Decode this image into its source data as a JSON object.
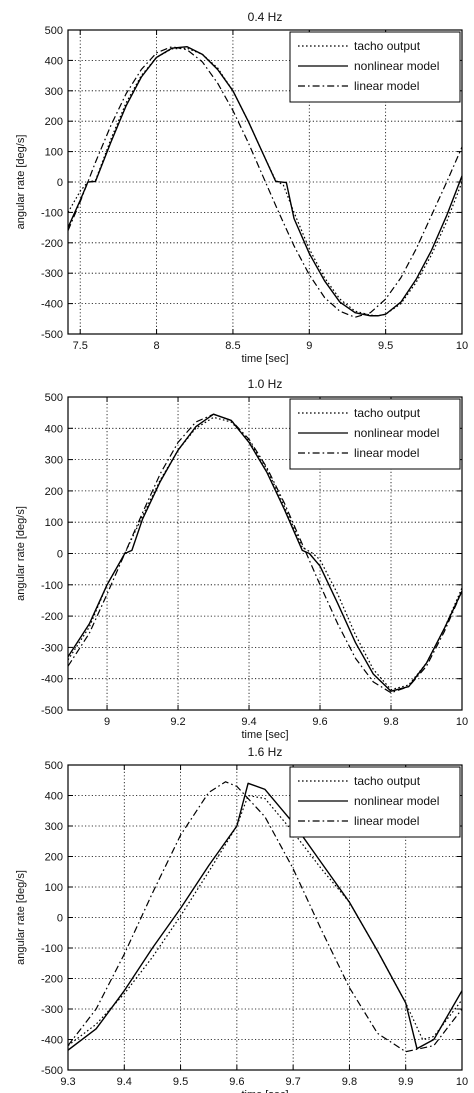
{
  "chart_data": [
    {
      "type": "line",
      "title": "0.4 Hz",
      "xlabel": "time [sec]",
      "ylabel": "angular rate [deg/s]",
      "xlim": [
        7.42,
        10
      ],
      "ylim": [
        -500,
        500
      ],
      "xticks": [
        7.5,
        8,
        8.5,
        9,
        9.5,
        10
      ],
      "xtick_labels": [
        "7.5",
        "8",
        "8.5",
        "9",
        "9.5",
        "10"
      ],
      "yticks": [
        -500,
        -400,
        -300,
        -200,
        -100,
        0,
        100,
        200,
        300,
        400,
        500
      ],
      "ytick_labels": [
        "-500",
        "-400",
        "-300",
        "-200",
        "-100",
        "0",
        "100",
        "200",
        "300",
        "400",
        "500"
      ],
      "grid": true,
      "legend_position": "top-right",
      "series": [
        {
          "name": "tacho output",
          "dash": "dotted",
          "x": [
            7.42,
            7.5,
            7.55,
            7.6,
            7.7,
            7.8,
            7.9,
            8.0,
            8.1,
            8.2,
            8.3,
            8.4,
            8.5,
            8.6,
            8.7,
            8.78,
            8.83,
            8.9,
            9.0,
            9.1,
            9.2,
            9.3,
            9.4,
            9.45,
            9.5,
            9.6,
            9.7,
            9.8,
            9.9,
            10.0
          ],
          "y": [
            -100,
            -30,
            0,
            5,
            140,
            260,
            350,
            410,
            438,
            440,
            420,
            375,
            300,
            200,
            90,
            5,
            -10,
            -100,
            -220,
            -315,
            -385,
            -425,
            -438,
            -440,
            -435,
            -400,
            -330,
            -240,
            -130,
            0
          ]
        },
        {
          "name": "nonlinear model",
          "dash": "solid",
          "x": [
            7.42,
            7.5,
            7.55,
            7.6,
            7.7,
            7.8,
            7.9,
            8.0,
            8.1,
            8.2,
            8.3,
            8.4,
            8.5,
            8.6,
            8.7,
            8.78,
            8.85,
            8.9,
            9.0,
            9.1,
            9.2,
            9.3,
            9.4,
            9.45,
            9.5,
            9.6,
            9.7,
            9.8,
            9.9,
            10.0
          ],
          "y": [
            -150,
            -60,
            0,
            2,
            130,
            250,
            345,
            410,
            440,
            445,
            420,
            370,
            300,
            200,
            90,
            2,
            -2,
            -120,
            -235,
            -325,
            -395,
            -430,
            -440,
            -440,
            -435,
            -395,
            -320,
            -225,
            -110,
            20
          ]
        },
        {
          "name": "linear model",
          "dash": "dashdot",
          "x": [
            7.42,
            7.5,
            7.6,
            7.7,
            7.8,
            7.9,
            8.0,
            8.1,
            8.2,
            8.3,
            8.4,
            8.5,
            8.6,
            8.7,
            8.8,
            8.9,
            9.0,
            9.1,
            9.2,
            9.3,
            9.4,
            9.5,
            9.6,
            9.7,
            9.8,
            9.9,
            10.0
          ],
          "y": [
            -160,
            -65,
            65,
            185,
            290,
            370,
            425,
            445,
            435,
            395,
            325,
            235,
            130,
            15,
            -100,
            -210,
            -305,
            -380,
            -425,
            -445,
            -430,
            -385,
            -315,
            -220,
            -110,
            0,
            115
          ]
        }
      ]
    },
    {
      "type": "line",
      "title": "1.0 Hz",
      "xlabel": "time [sec]",
      "ylabel": "angular rate [deg/s]",
      "xlim": [
        8.89,
        10
      ],
      "ylim": [
        -500,
        500
      ],
      "xticks": [
        9,
        9.2,
        9.4,
        9.6,
        9.8,
        10
      ],
      "xtick_labels": [
        "9",
        "9.2",
        "9.4",
        "9.6",
        "9.8",
        "10"
      ],
      "yticks": [
        -500,
        -400,
        -300,
        -200,
        -100,
        0,
        100,
        200,
        300,
        400,
        500
      ],
      "ytick_labels": [
        "-500",
        "-400",
        "-300",
        "-200",
        "-100",
        "0",
        "100",
        "200",
        "300",
        "400",
        "500"
      ],
      "grid": true,
      "legend_position": "top-right",
      "series": [
        {
          "name": "tacho output",
          "dash": "dotted",
          "x": [
            8.89,
            8.95,
            9.0,
            9.05,
            9.1,
            9.15,
            9.2,
            9.25,
            9.3,
            9.35,
            9.4,
            9.45,
            9.5,
            9.55,
            9.58,
            9.6,
            9.65,
            9.7,
            9.75,
            9.8,
            9.85,
            9.9,
            9.95,
            10.0
          ],
          "y": [
            -340,
            -235,
            -100,
            0,
            120,
            235,
            330,
            400,
            435,
            420,
            360,
            270,
            150,
            20,
            0,
            -20,
            -130,
            -260,
            -370,
            -435,
            -420,
            -350,
            -240,
            -110
          ]
        },
        {
          "name": "nonlinear model",
          "dash": "solid",
          "x": [
            8.89,
            8.95,
            9.0,
            9.05,
            9.07,
            9.1,
            9.15,
            9.2,
            9.25,
            9.3,
            9.35,
            9.4,
            9.45,
            9.5,
            9.55,
            9.57,
            9.6,
            9.65,
            9.7,
            9.75,
            9.8,
            9.85,
            9.9,
            9.95,
            10.0
          ],
          "y": [
            -330,
            -225,
            -100,
            0,
            10,
            110,
            230,
            330,
            405,
            445,
            425,
            355,
            260,
            140,
            10,
            0,
            -40,
            -160,
            -285,
            -385,
            -440,
            -425,
            -350,
            -240,
            -120
          ]
        },
        {
          "name": "linear model",
          "dash": "dashdot",
          "x": [
            8.89,
            8.95,
            9.0,
            9.05,
            9.1,
            9.15,
            9.2,
            9.25,
            9.3,
            9.35,
            9.4,
            9.45,
            9.5,
            9.55,
            9.6,
            9.65,
            9.7,
            9.75,
            9.8,
            9.85,
            9.9,
            9.95,
            10.0
          ],
          "y": [
            -360,
            -255,
            -130,
            0,
            130,
            255,
            355,
            420,
            445,
            425,
            365,
            275,
            160,
            30,
            -100,
            -225,
            -335,
            -410,
            -445,
            -425,
            -360,
            -250,
            -120
          ]
        }
      ]
    },
    {
      "type": "line",
      "title": "1.6 Hz",
      "xlabel": "time [sec]",
      "ylabel": "angular rate [deg/s]",
      "xlim": [
        9.3,
        10
      ],
      "ylim": [
        -500,
        500
      ],
      "xticks": [
        9.3,
        9.4,
        9.5,
        9.6,
        9.7,
        9.8,
        9.9,
        10
      ],
      "xtick_labels": [
        "9.3",
        "9.4",
        "9.5",
        "9.6",
        "9.7",
        "9.8",
        "9.9",
        "10"
      ],
      "yticks": [
        -500,
        -400,
        -300,
        -200,
        -100,
        0,
        100,
        200,
        300,
        400,
        500
      ],
      "ytick_labels": [
        "-500",
        "-400",
        "-300",
        "-200",
        "-100",
        "0",
        "100",
        "200",
        "300",
        "400",
        "500"
      ],
      "grid": true,
      "legend_position": "top-right",
      "series": [
        {
          "name": "tacho output",
          "dash": "dotted",
          "x": [
            9.3,
            9.35,
            9.4,
            9.45,
            9.5,
            9.55,
            9.6,
            9.62,
            9.65,
            9.7,
            9.75,
            9.8,
            9.85,
            9.9,
            9.93,
            9.95,
            10.0
          ],
          "y": [
            -420,
            -350,
            -250,
            -130,
            5,
            150,
            300,
            400,
            390,
            280,
            160,
            50,
            -110,
            -280,
            -400,
            -390,
            -270
          ]
        },
        {
          "name": "nonlinear model",
          "dash": "solid",
          "x": [
            9.3,
            9.35,
            9.4,
            9.45,
            9.5,
            9.55,
            9.6,
            9.62,
            9.65,
            9.7,
            9.75,
            9.8,
            9.85,
            9.9,
            9.92,
            9.95,
            10.0
          ],
          "y": [
            -435,
            -365,
            -240,
            -100,
            30,
            170,
            300,
            440,
            420,
            310,
            180,
            50,
            -110,
            -280,
            -430,
            -400,
            -240
          ]
        },
        {
          "name": "linear model",
          "dash": "dashdot",
          "x": [
            9.3,
            9.35,
            9.4,
            9.45,
            9.5,
            9.55,
            9.58,
            9.6,
            9.65,
            9.7,
            9.75,
            9.8,
            9.85,
            9.9,
            9.95,
            10.0
          ],
          "y": [
            -420,
            -300,
            -120,
            80,
            270,
            410,
            445,
            430,
            330,
            160,
            -40,
            -230,
            -380,
            -440,
            -420,
            -300
          ]
        }
      ]
    }
  ]
}
